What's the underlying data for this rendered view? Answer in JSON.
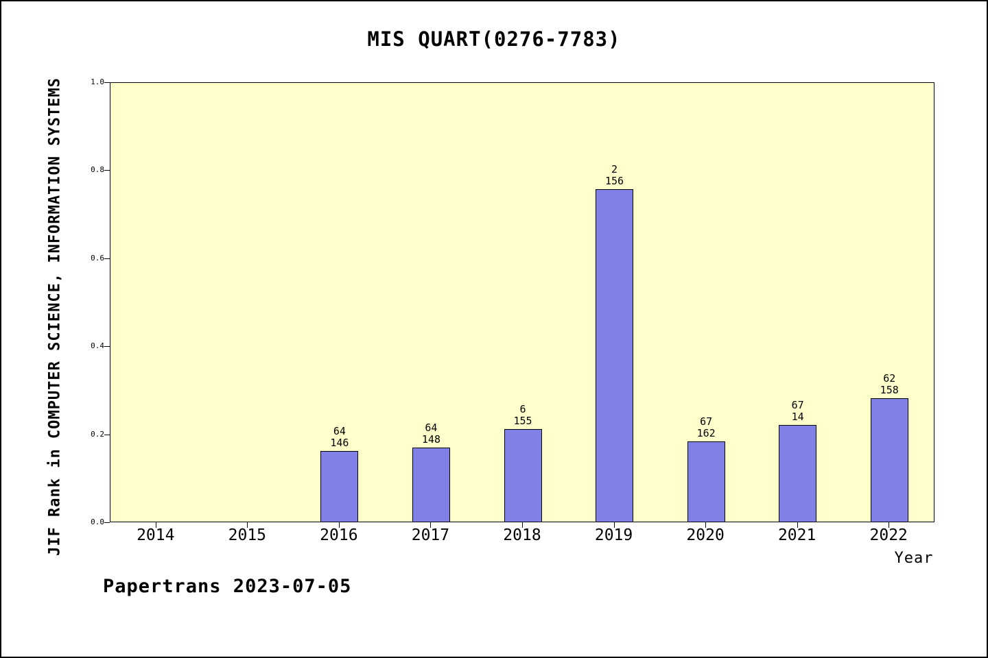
{
  "title": "MIS QUART(0276-7783)",
  "footer": "Papertrans 2023-07-05",
  "chart_data": {
    "type": "bar",
    "title": "MIS QUART(0276-7783)",
    "xlabel": "Year",
    "ylabel": "JIF Rank in COMPUTER SCIENCE, INFORMATION SYSTEMS",
    "ylim": [
      0.0,
      1.0
    ],
    "yticks": [
      0.0,
      0.2,
      0.4,
      0.6,
      0.8,
      1.0
    ],
    "grid": false,
    "legend": "none",
    "categories": [
      "2014",
      "2015",
      "2016",
      "2017",
      "2018",
      "2019",
      "2020",
      "2021",
      "2022"
    ],
    "values": [
      null,
      null,
      0.16,
      0.168,
      0.21,
      0.755,
      0.182,
      0.22,
      0.28
    ],
    "bar_annotations": [
      null,
      null,
      [
        "64",
        "146"
      ],
      [
        "64",
        "148"
      ],
      [
        "6",
        "155"
      ],
      [
        "2",
        "156"
      ],
      [
        "67",
        "162"
      ],
      [
        "67",
        "14"
      ],
      [
        "62",
        "158"
      ]
    ],
    "colors": {
      "bar_fill": "#8080e6",
      "bar_border": "#000000",
      "plot_background": "#ffffcc",
      "frame_border": "#000000",
      "text": "#000000"
    }
  }
}
